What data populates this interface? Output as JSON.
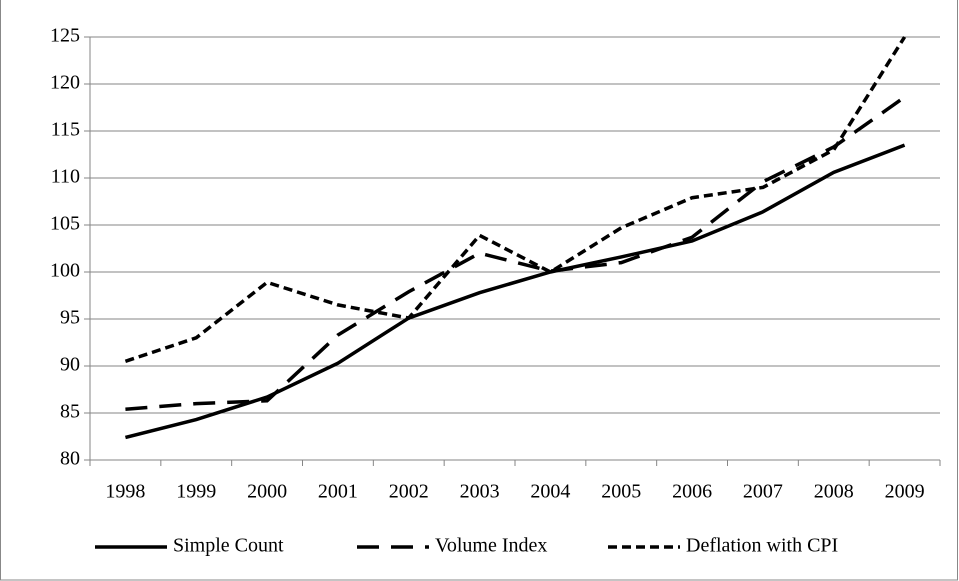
{
  "chart_data": {
    "type": "line",
    "categories": [
      "1998",
      "1999",
      "2000",
      "2001",
      "2002",
      "2003",
      "2004",
      "2005",
      "2006",
      "2007",
      "2008",
      "2009"
    ],
    "series": [
      {
        "name": "Simple Count",
        "color": "#000000",
        "dash": "solid",
        "values": [
          82.4,
          84.3,
          86.7,
          90.3,
          95.1,
          97.8,
          100,
          101.6,
          103.3,
          106.4,
          110.6,
          113.5
        ]
      },
      {
        "name": "Volume Index",
        "color": "#000000",
        "dash": "long-dash",
        "values": [
          85.4,
          86.0,
          86.3,
          93.3,
          97.9,
          102.0,
          100.1,
          101.0,
          103.7,
          109.6,
          113.3,
          118.6
        ]
      },
      {
        "name": "Deflation with CPI",
        "color": "#000000",
        "dash": "short-dash",
        "values": [
          90.5,
          93.0,
          98.9,
          96.5,
          95.1,
          103.9,
          100,
          104.7,
          107.9,
          109.0,
          113.0,
          125.0
        ]
      }
    ],
    "ylim": [
      80,
      125
    ],
    "yticks": [
      80,
      85,
      90,
      95,
      100,
      105,
      110,
      115,
      120,
      125
    ],
    "grid": true,
    "legend": "bottom"
  }
}
